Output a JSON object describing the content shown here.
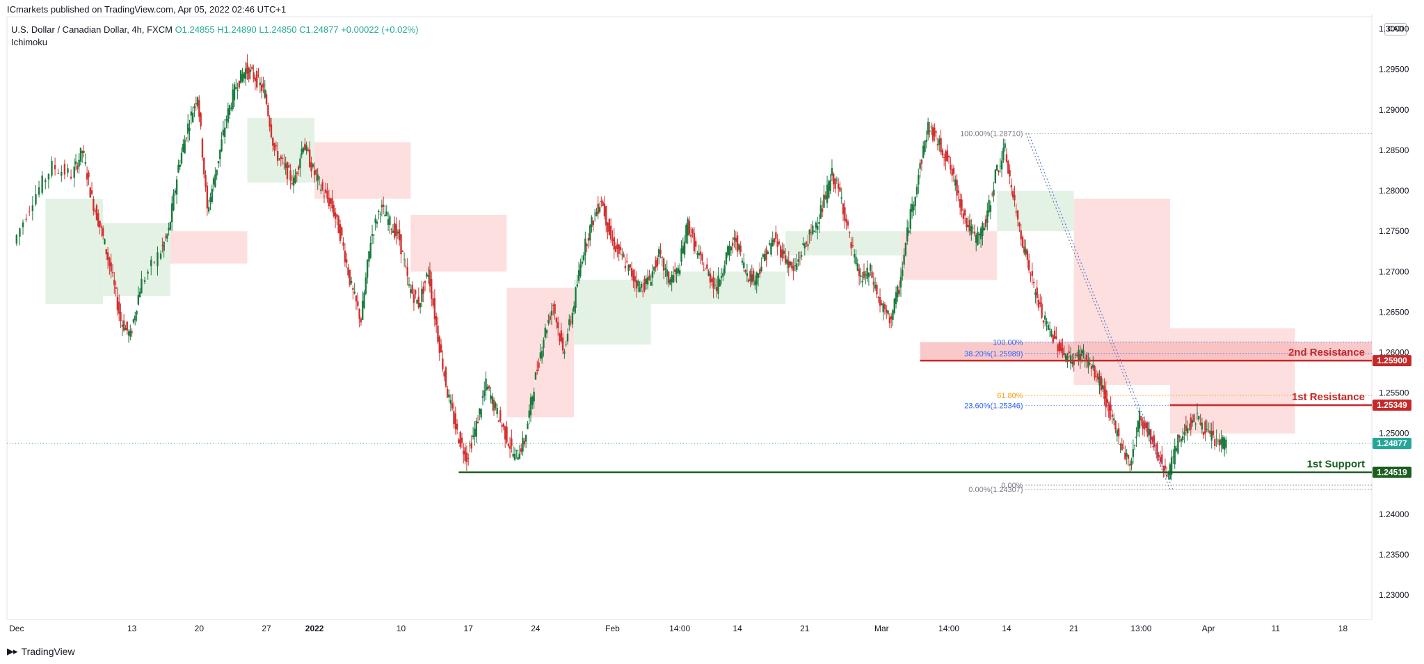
{
  "header": {
    "publisher": "ICmarkets published on TradingView.com, Apr 05, 2022 02:46 UTC+1"
  },
  "legend": {
    "symbol": "U.S. Dollar / Canadian Dollar, 4h, FXCM",
    "open": "O1.24855",
    "high": "H1.24890",
    "low": "L1.24850",
    "close": "C1.24877",
    "change": "+0.00022 (+0.02%)",
    "indicator": "Ichimoku"
  },
  "currency_badge": "CAD",
  "footer": {
    "brand": "TradingView"
  },
  "colors": {
    "up": "#26a69a",
    "down": "#d32f2f",
    "up_dark": "#1b7a3e",
    "resistance": "#c62828",
    "support": "#1b5e20",
    "cloud_green": "#d9eedb",
    "cloud_red": "#fcd4d4",
    "fib_blue": "#2962ff",
    "fib_orange": "#ff9800",
    "fib_grey": "#787b86"
  },
  "chart_data": {
    "type": "candlestick",
    "title": "U.S. Dollar / Canadian Dollar, 4h, FXCM",
    "y_ticks": [
      "1.30000",
      "1.29500",
      "1.29000",
      "1.28500",
      "1.28000",
      "1.27500",
      "1.27000",
      "1.26500",
      "1.26000",
      "1.25500",
      "1.25000",
      "1.24500",
      "1.24000",
      "1.23500",
      "1.23000"
    ],
    "y_tick_values": [
      1.3,
      1.295,
      1.29,
      1.285,
      1.28,
      1.275,
      1.27,
      1.265,
      1.26,
      1.255,
      1.25,
      1.245,
      1.24,
      1.235,
      1.23
    ],
    "ylim": [
      1.227,
      1.301
    ],
    "x_ticks": [
      "Dec",
      "13",
      "20",
      "27",
      "2022",
      "10",
      "17",
      "24",
      "Feb",
      "14:00",
      "14",
      "21",
      "Mar",
      "14:00",
      "14",
      "21",
      "13:00",
      "Apr",
      "11",
      "18"
    ],
    "x_tick_days": [
      0,
      12,
      19,
      26,
      31,
      40,
      47,
      54,
      62,
      69,
      75,
      82,
      90,
      97,
      103,
      110,
      117,
      124,
      131,
      138
    ],
    "x_range_days": [
      -1,
      141
    ],
    "price_path": [
      [
        0,
        1.2735
      ],
      [
        2,
        1.279
      ],
      [
        4,
        1.283
      ],
      [
        6,
        1.282
      ],
      [
        7,
        1.285
      ],
      [
        8,
        1.279
      ],
      [
        9,
        1.275
      ],
      [
        10,
        1.27
      ],
      [
        11,
        1.264
      ],
      [
        12,
        1.262
      ],
      [
        13,
        1.268
      ],
      [
        15,
        1.272
      ],
      [
        16,
        1.275
      ],
      [
        17,
        1.283
      ],
      [
        18,
        1.288
      ],
      [
        19,
        1.292
      ],
      [
        20,
        1.2775
      ],
      [
        21,
        1.283
      ],
      [
        22,
        1.289
      ],
      [
        23,
        1.293
      ],
      [
        24,
        1.295
      ],
      [
        25,
        1.294
      ],
      [
        26,
        1.292
      ],
      [
        27,
        1.285
      ],
      [
        28,
        1.283
      ],
      [
        29,
        1.281
      ],
      [
        30,
        1.286
      ],
      [
        31,
        1.2825
      ],
      [
        32,
        1.28
      ],
      [
        33,
        1.278
      ],
      [
        34,
        1.274
      ],
      [
        35,
        1.268
      ],
      [
        36,
        1.264
      ],
      [
        37,
        1.274
      ],
      [
        38,
        1.278
      ],
      [
        39,
        1.276
      ],
      [
        40,
        1.274
      ],
      [
        41,
        1.268
      ],
      [
        42,
        1.266
      ],
      [
        43,
        1.27
      ],
      [
        44,
        1.262
      ],
      [
        45,
        1.255
      ],
      [
        46,
        1.25
      ],
      [
        47,
        1.247
      ],
      [
        48,
        1.251
      ],
      [
        49,
        1.256
      ],
      [
        50,
        1.253
      ],
      [
        51,
        1.25
      ],
      [
        52,
        1.247
      ],
      [
        53,
        1.249
      ],
      [
        54,
        1.256
      ],
      [
        55,
        1.262
      ],
      [
        56,
        1.266
      ],
      [
        57,
        1.26
      ],
      [
        58,
        1.265
      ],
      [
        59,
        1.272
      ],
      [
        60,
        1.276
      ],
      [
        61,
        1.279
      ],
      [
        62,
        1.274
      ],
      [
        63,
        1.272
      ],
      [
        64,
        1.27
      ],
      [
        65,
        1.268
      ],
      [
        66,
        1.269
      ],
      [
        67,
        1.272
      ],
      [
        68,
        1.269
      ],
      [
        69,
        1.27
      ],
      [
        70,
        1.276
      ],
      [
        71,
        1.272
      ],
      [
        72,
        1.27
      ],
      [
        73,
        1.268
      ],
      [
        74,
        1.272
      ],
      [
        75,
        1.274
      ],
      [
        76,
        1.27
      ],
      [
        77,
        1.269
      ],
      [
        78,
        1.272
      ],
      [
        79,
        1.274
      ],
      [
        80,
        1.272
      ],
      [
        81,
        1.27
      ],
      [
        82,
        1.273
      ],
      [
        83,
        1.275
      ],
      [
        84,
        1.278
      ],
      [
        85,
        1.282
      ],
      [
        86,
        1.279
      ],
      [
        87,
        1.273
      ],
      [
        88,
        1.269
      ],
      [
        89,
        1.27
      ],
      [
        90,
        1.266
      ],
      [
        91,
        1.264
      ],
      [
        92,
        1.268
      ],
      [
        93,
        1.276
      ],
      [
        94,
        1.282
      ],
      [
        95,
        1.288
      ],
      [
        96,
        1.286
      ],
      [
        97,
        1.284
      ],
      [
        98,
        1.28
      ],
      [
        99,
        1.276
      ],
      [
        100,
        1.274
      ],
      [
        101,
        1.276
      ],
      [
        102,
        1.282
      ],
      [
        103,
        1.285
      ],
      [
        104,
        1.278
      ],
      [
        105,
        1.273
      ],
      [
        106,
        1.268
      ],
      [
        107,
        1.264
      ],
      [
        108,
        1.262
      ],
      [
        109,
        1.26
      ],
      [
        110,
        1.259
      ],
      [
        111,
        1.26
      ],
      [
        112,
        1.258
      ],
      [
        113,
        1.256
      ],
      [
        114,
        1.252
      ],
      [
        115,
        1.249
      ],
      [
        116,
        1.246
      ],
      [
        117,
        1.252
      ],
      [
        118,
        1.25
      ],
      [
        119,
        1.247
      ],
      [
        120,
        1.245
      ],
      [
        121,
        1.249
      ],
      [
        122,
        1.251
      ],
      [
        123,
        1.252
      ],
      [
        124,
        1.25
      ],
      [
        125,
        1.249
      ],
      [
        126,
        1.24877
      ]
    ],
    "cloud": [
      {
        "from": 3,
        "to": 9,
        "top": 1.279,
        "bottom": 1.266,
        "color": "green"
      },
      {
        "from": 9,
        "to": 16,
        "top": 1.276,
        "bottom": 1.267,
        "color": "green"
      },
      {
        "from": 16,
        "to": 24,
        "top": 1.275,
        "bottom": 1.271,
        "color": "red"
      },
      {
        "from": 24,
        "to": 31,
        "top": 1.289,
        "bottom": 1.281,
        "color": "green"
      },
      {
        "from": 31,
        "to": 41,
        "top": 1.286,
        "bottom": 1.279,
        "color": "red"
      },
      {
        "from": 41,
        "to": 51,
        "top": 1.277,
        "bottom": 1.27,
        "color": "red"
      },
      {
        "from": 51,
        "to": 58,
        "top": 1.268,
        "bottom": 1.252,
        "color": "red"
      },
      {
        "from": 58,
        "to": 66,
        "top": 1.269,
        "bottom": 1.261,
        "color": "green"
      },
      {
        "from": 66,
        "to": 80,
        "top": 1.27,
        "bottom": 1.266,
        "color": "green"
      },
      {
        "from": 80,
        "to": 92,
        "top": 1.275,
        "bottom": 1.272,
        "color": "green"
      },
      {
        "from": 92,
        "to": 102,
        "top": 1.275,
        "bottom": 1.269,
        "color": "red"
      },
      {
        "from": 102,
        "to": 110,
        "top": 1.28,
        "bottom": 1.275,
        "color": "green"
      },
      {
        "from": 110,
        "to": 120,
        "top": 1.279,
        "bottom": 1.256,
        "color": "red"
      },
      {
        "from": 120,
        "to": 133,
        "top": 1.263,
        "bottom": 1.25,
        "color": "red"
      }
    ],
    "levels": [
      {
        "name": "2nd Resistance",
        "value": 1.259,
        "label": "1.25900",
        "color": "resistance",
        "from_day": 94
      },
      {
        "name": "1st Resistance",
        "value": 1.25349,
        "label": "1.25349",
        "color": "resistance",
        "from_day": 120
      },
      {
        "name": "1st Support",
        "value": 1.24519,
        "label": "1.24519",
        "color": "support",
        "from_day": 46
      }
    ],
    "current_price": {
      "value": 1.24877,
      "label": "1.24877"
    },
    "fib_upper": [
      {
        "label": "100.00%",
        "value": 1.2613,
        "color": "fib_blue"
      },
      {
        "label": "38.20%(1.25989)",
        "value": 1.25989,
        "color": "fib_blue"
      },
      {
        "label": "61.80%",
        "value": 1.2547,
        "color": "fib_orange"
      },
      {
        "label": "23.60%(1.25346)",
        "value": 1.25346,
        "color": "fib_blue"
      },
      {
        "label": "0.00%",
        "value": 1.2436,
        "color": "fib_grey"
      }
    ],
    "fib_lower": [
      {
        "label": "100.00%(1.28710)",
        "value": 1.2871
      },
      {
        "label": "0.00%(1.24307)",
        "value": 1.24307
      }
    ],
    "resistance_zone": {
      "from_day": 94,
      "to_day": 141,
      "top": 1.2613,
      "bottom": 1.259
    },
    "trend_line": {
      "from": [
        105,
        1.2871
      ],
      "to": [
        120,
        1.24307
      ]
    }
  }
}
